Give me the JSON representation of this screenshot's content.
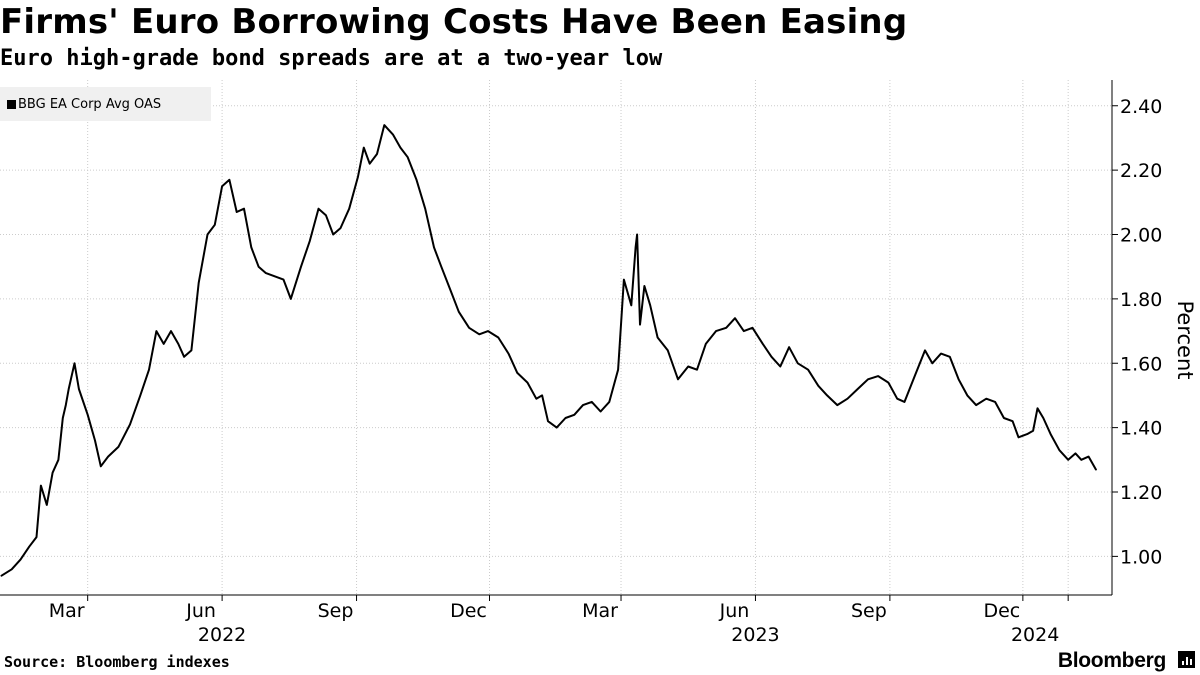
{
  "title": "Firms' Euro Borrowing Costs Have Been Easing",
  "subtitle": "Euro high-grade bond spreads are at a two-year low",
  "source": "Source: Bloomberg indexes",
  "brand": "Bloomberg",
  "colors": {
    "line": "#000000",
    "grid": "#cccccc",
    "legend_bg": "#f0f0f0"
  },
  "chart_data": {
    "type": "line",
    "title": "Firms' Euro Borrowing Costs Have Been Easing",
    "subtitle": "Euro high-grade bond spreads are at a two-year low",
    "ylabel": "Percent",
    "xlabel": "",
    "ylim": [
      0.88,
      2.48
    ],
    "xlim": [
      "2021-12-31",
      "2024-01-31"
    ],
    "y_ticks": [
      1.0,
      1.2,
      1.4,
      1.6,
      1.8,
      2.0,
      2.2,
      2.4
    ],
    "y_tick_labels": [
      "1.00",
      "1.20",
      "1.40",
      "1.60",
      "1.80",
      "2.00",
      "2.20",
      "2.40"
    ],
    "x_ticks": [
      {
        "date": "2022-03-01",
        "label": "Mar",
        "year": ""
      },
      {
        "date": "2022-06-01",
        "label": "Jun",
        "year": "2022"
      },
      {
        "date": "2022-09-01",
        "label": "Sep",
        "year": ""
      },
      {
        "date": "2022-12-01",
        "label": "Dec",
        "year": ""
      },
      {
        "date": "2023-03-01",
        "label": "Mar",
        "year": ""
      },
      {
        "date": "2023-06-01",
        "label": "Jun",
        "year": "2023"
      },
      {
        "date": "2023-09-01",
        "label": "Sep",
        "year": ""
      },
      {
        "date": "2023-12-01",
        "label": "Dec",
        "year": ""
      },
      {
        "date": "2024-01-01",
        "label": "",
        "year": "2024"
      }
    ],
    "grid": true,
    "legend_position": "top-left",
    "series": [
      {
        "name": "BBG EA Corp Avg OAS",
        "points": [
          [
            "2022-01-01",
            0.94
          ],
          [
            "2022-01-08",
            0.96
          ],
          [
            "2022-01-14",
            0.99
          ],
          [
            "2022-01-20",
            1.03
          ],
          [
            "2022-01-25",
            1.06
          ],
          [
            "2022-01-28",
            1.22
          ],
          [
            "2022-02-01",
            1.16
          ],
          [
            "2022-02-05",
            1.26
          ],
          [
            "2022-02-09",
            1.3
          ],
          [
            "2022-02-12",
            1.43
          ],
          [
            "2022-02-14",
            1.47
          ],
          [
            "2022-02-16",
            1.52
          ],
          [
            "2022-02-20",
            1.6
          ],
          [
            "2022-02-23",
            1.52
          ],
          [
            "2022-03-01",
            1.44
          ],
          [
            "2022-03-06",
            1.36
          ],
          [
            "2022-03-10",
            1.28
          ],
          [
            "2022-03-15",
            1.31
          ],
          [
            "2022-03-22",
            1.34
          ],
          [
            "2022-03-30",
            1.41
          ],
          [
            "2022-04-06",
            1.5
          ],
          [
            "2022-04-12",
            1.58
          ],
          [
            "2022-04-17",
            1.7
          ],
          [
            "2022-04-22",
            1.66
          ],
          [
            "2022-04-27",
            1.7
          ],
          [
            "2022-05-02",
            1.66
          ],
          [
            "2022-05-06",
            1.62
          ],
          [
            "2022-05-11",
            1.64
          ],
          [
            "2022-05-16",
            1.85
          ],
          [
            "2022-05-22",
            2.0
          ],
          [
            "2022-05-27",
            2.03
          ],
          [
            "2022-06-01",
            2.15
          ],
          [
            "2022-06-06",
            2.17
          ],
          [
            "2022-06-11",
            2.07
          ],
          [
            "2022-06-16",
            2.08
          ],
          [
            "2022-06-21",
            1.96
          ],
          [
            "2022-06-26",
            1.9
          ],
          [
            "2022-07-01",
            1.88
          ],
          [
            "2022-07-07",
            1.87
          ],
          [
            "2022-07-13",
            1.86
          ],
          [
            "2022-07-18",
            1.8
          ],
          [
            "2022-07-25",
            1.9
          ],
          [
            "2022-07-31",
            1.98
          ],
          [
            "2022-08-06",
            2.08
          ],
          [
            "2022-08-11",
            2.06
          ],
          [
            "2022-08-16",
            2.0
          ],
          [
            "2022-08-21",
            2.02
          ],
          [
            "2022-08-27",
            2.08
          ],
          [
            "2022-09-02",
            2.18
          ],
          [
            "2022-09-06",
            2.27
          ],
          [
            "2022-09-10",
            2.22
          ],
          [
            "2022-09-15",
            2.25
          ],
          [
            "2022-09-20",
            2.34
          ],
          [
            "2022-09-26",
            2.31
          ],
          [
            "2022-10-01",
            2.27
          ],
          [
            "2022-10-06",
            2.24
          ],
          [
            "2022-10-12",
            2.17
          ],
          [
            "2022-10-18",
            2.08
          ],
          [
            "2022-10-24",
            1.96
          ],
          [
            "2022-10-29",
            1.9
          ],
          [
            "2022-11-04",
            1.83
          ],
          [
            "2022-11-10",
            1.76
          ],
          [
            "2022-11-17",
            1.71
          ],
          [
            "2022-11-24",
            1.69
          ],
          [
            "2022-11-30",
            1.7
          ],
          [
            "2022-12-07",
            1.68
          ],
          [
            "2022-12-14",
            1.63
          ],
          [
            "2022-12-20",
            1.57
          ],
          [
            "2022-12-27",
            1.54
          ],
          [
            "2023-01-02",
            1.49
          ],
          [
            "2023-01-06",
            1.5
          ],
          [
            "2023-01-10",
            1.42
          ],
          [
            "2023-01-16",
            1.4
          ],
          [
            "2023-01-22",
            1.43
          ],
          [
            "2023-01-28",
            1.44
          ],
          [
            "2023-02-03",
            1.47
          ],
          [
            "2023-02-09",
            1.48
          ],
          [
            "2023-02-15",
            1.45
          ],
          [
            "2023-02-21",
            1.48
          ],
          [
            "2023-02-27",
            1.58
          ],
          [
            "2023-03-03",
            1.86
          ],
          [
            "2023-03-08",
            1.78
          ],
          [
            "2023-03-11",
            1.96
          ],
          [
            "2023-03-12",
            2.0
          ],
          [
            "2023-03-14",
            1.72
          ],
          [
            "2023-03-17",
            1.84
          ],
          [
            "2023-03-21",
            1.78
          ],
          [
            "2023-03-26",
            1.68
          ],
          [
            "2023-04-02",
            1.64
          ],
          [
            "2023-04-09",
            1.55
          ],
          [
            "2023-04-16",
            1.59
          ],
          [
            "2023-04-22",
            1.58
          ],
          [
            "2023-04-28",
            1.66
          ],
          [
            "2023-05-05",
            1.7
          ],
          [
            "2023-05-12",
            1.71
          ],
          [
            "2023-05-18",
            1.74
          ],
          [
            "2023-05-24",
            1.7
          ],
          [
            "2023-05-30",
            1.71
          ],
          [
            "2023-06-06",
            1.66
          ],
          [
            "2023-06-12",
            1.62
          ],
          [
            "2023-06-18",
            1.59
          ],
          [
            "2023-06-24",
            1.65
          ],
          [
            "2023-06-30",
            1.6
          ],
          [
            "2023-07-07",
            1.58
          ],
          [
            "2023-07-14",
            1.53
          ],
          [
            "2023-07-20",
            1.5
          ],
          [
            "2023-07-27",
            1.47
          ],
          [
            "2023-08-03",
            1.49
          ],
          [
            "2023-08-10",
            1.52
          ],
          [
            "2023-08-17",
            1.55
          ],
          [
            "2023-08-24",
            1.56
          ],
          [
            "2023-08-31",
            1.54
          ],
          [
            "2023-09-06",
            1.49
          ],
          [
            "2023-09-11",
            1.48
          ],
          [
            "2023-09-18",
            1.56
          ],
          [
            "2023-09-25",
            1.64
          ],
          [
            "2023-09-30",
            1.6
          ],
          [
            "2023-10-06",
            1.63
          ],
          [
            "2023-10-12",
            1.62
          ],
          [
            "2023-10-18",
            1.55
          ],
          [
            "2023-10-24",
            1.5
          ],
          [
            "2023-10-30",
            1.47
          ],
          [
            "2023-11-06",
            1.49
          ],
          [
            "2023-11-12",
            1.48
          ],
          [
            "2023-11-18",
            1.43
          ],
          [
            "2023-11-24",
            1.42
          ],
          [
            "2023-11-28",
            1.37
          ],
          [
            "2023-12-04",
            1.38
          ],
          [
            "2023-12-08",
            1.39
          ],
          [
            "2023-12-11",
            1.46
          ],
          [
            "2023-12-15",
            1.43
          ],
          [
            "2023-12-20",
            1.38
          ],
          [
            "2023-12-26",
            1.33
          ],
          [
            "2024-01-01",
            1.3
          ],
          [
            "2024-01-06",
            1.32
          ],
          [
            "2024-01-10",
            1.3
          ],
          [
            "2024-01-15",
            1.31
          ],
          [
            "2024-01-20",
            1.27
          ]
        ]
      }
    ]
  }
}
